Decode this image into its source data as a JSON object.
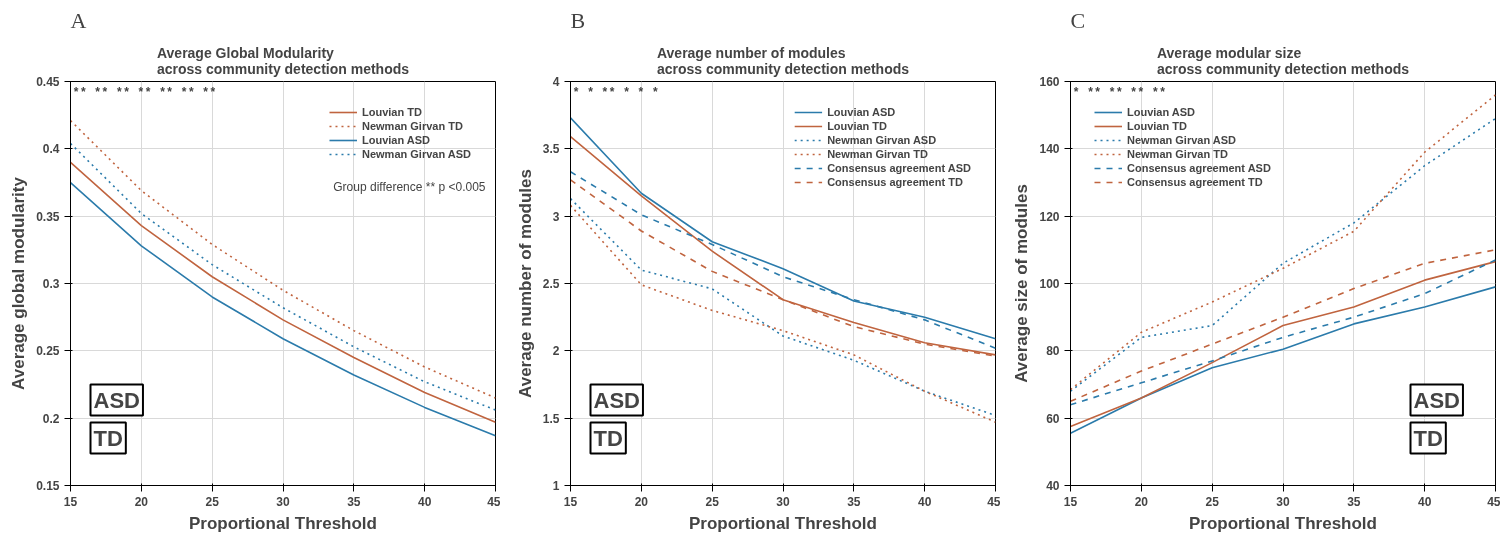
{
  "chart_data": [
    {
      "type": "line",
      "title": "Average Global Modularity\nacross community detection methods",
      "xlabel": "Proportional Threshold",
      "ylabel": "Average global modularity",
      "x": [
        15,
        20,
        25,
        30,
        35,
        40,
        45
      ],
      "xlim": [
        15,
        45
      ],
      "xticks": [
        15,
        20,
        25,
        30,
        35,
        40,
        45
      ],
      "ylim": [
        0.15,
        0.45
      ],
      "yticks": [
        0.15,
        0.2,
        0.25,
        0.3,
        0.35,
        0.4,
        0.45
      ],
      "grid": true,
      "legend": "top right",
      "series": [
        {
          "name": "Louvian TD",
          "color": "#c0643f",
          "line_style": "solid",
          "values": [
            0.39,
            0.343,
            0.305,
            0.273,
            0.245,
            0.219,
            0.197
          ]
        },
        {
          "name": "Newman Girvan TD",
          "color": "#c0643f",
          "line_style": "dotted",
          "values": [
            0.421,
            0.369,
            0.329,
            0.295,
            0.265,
            0.238,
            0.215
          ]
        },
        {
          "name": "Louvian ASD",
          "color": "#2b7bab",
          "line_style": "solid",
          "values": [
            0.375,
            0.328,
            0.29,
            0.259,
            0.232,
            0.208,
            0.187
          ]
        },
        {
          "name": "Newman Girvan ASD",
          "color": "#2b7bab",
          "line_style": "dotted",
          "values": [
            0.404,
            0.352,
            0.314,
            0.282,
            0.253,
            0.227,
            0.206
          ]
        }
      ],
      "annotations": [
        "A",
        "ASD",
        "TD",
        "**        **        **        **        **        **        **",
        "Group difference ** p <0.005"
      ]
    },
    {
      "type": "line",
      "title": "Average number of modules\nacross community detection methods",
      "xlabel": "Proportional Threshold",
      "ylabel": "Average number of modules",
      "x": [
        15,
        20,
        25,
        30,
        35,
        40,
        45
      ],
      "xlim": [
        15,
        45
      ],
      "xticks": [
        15,
        20,
        25,
        30,
        35,
        40,
        45
      ],
      "ylim": [
        1,
        4
      ],
      "yticks": [
        1,
        1.5,
        2,
        2.5,
        3,
        3.5,
        4
      ],
      "grid": true,
      "legend": "top right",
      "series": [
        {
          "name": "Louvian ASD",
          "color": "#2b7bab",
          "line_style": "solid",
          "values": [
            3.73,
            3.17,
            2.81,
            2.61,
            2.37,
            2.25,
            2.09
          ]
        },
        {
          "name": "Louvian TD",
          "color": "#c0643f",
          "line_style": "solid",
          "values": [
            3.59,
            3.15,
            2.74,
            2.38,
            2.21,
            2.06,
            1.97
          ]
        },
        {
          "name": "Newman Girvan ASD",
          "color": "#2b7bab",
          "line_style": "dotted",
          "values": [
            3.13,
            2.6,
            2.46,
            2.11,
            1.93,
            1.7,
            1.52
          ]
        },
        {
          "name": "Newman Girvan TD",
          "color": "#c0643f",
          "line_style": "dotted",
          "values": [
            3.08,
            2.49,
            2.3,
            2.15,
            1.97,
            1.7,
            1.47
          ]
        },
        {
          "name": "Consensus agreement ASD",
          "color": "#2b7bab",
          "line_style": "dashed",
          "values": [
            3.33,
            3.01,
            2.79,
            2.55,
            2.38,
            2.23,
            2.02
          ]
        },
        {
          "name": "Consensus agreement TD",
          "color": "#c0643f",
          "line_style": "dashed",
          "values": [
            3.27,
            2.89,
            2.59,
            2.38,
            2.18,
            2.05,
            1.96
          ]
        }
      ],
      "annotations": [
        "B",
        "ASD",
        "TD",
        "*                  *        **        *         *         *"
      ]
    },
    {
      "type": "line",
      "title": "Average modular size\nacross community detection methods",
      "xlabel": "Proportional Threshold",
      "ylabel": "Average size of modules",
      "x": [
        15,
        20,
        25,
        30,
        35,
        40,
        45
      ],
      "xlim": [
        15,
        45
      ],
      "xticks": [
        15,
        20,
        25,
        30,
        35,
        40,
        45
      ],
      "ylim": [
        40,
        160
      ],
      "yticks": [
        40,
        60,
        80,
        100,
        120,
        140,
        160
      ],
      "grid": true,
      "legend": "top left",
      "series": [
        {
          "name": "Louvian ASD",
          "color": "#2b7bab",
          "line_style": "solid",
          "values": [
            55.5,
            66,
            75,
            80.5,
            88,
            93,
            99
          ]
        },
        {
          "name": "Louvian TD",
          "color": "#c0643f",
          "line_style": "solid",
          "values": [
            57.5,
            66,
            76.5,
            87.5,
            93,
            101,
            106.5
          ]
        },
        {
          "name": "Newman Girvan ASD",
          "color": "#2b7bab",
          "line_style": "dotted",
          "values": [
            68,
            84,
            87.5,
            106,
            118,
            135,
            149
          ]
        },
        {
          "name": "Newman Girvan TD",
          "color": "#c0643f",
          "line_style": "dotted",
          "values": [
            68.5,
            85.5,
            94.5,
            104.5,
            115.5,
            139,
            156
          ]
        },
        {
          "name": "Consensus agreement ASD",
          "color": "#2b7bab",
          "line_style": "dashed",
          "values": [
            64,
            70.5,
            77,
            84,
            90,
            97,
            107
          ]
        },
        {
          "name": "Consensus agreement TD",
          "color": "#c0643f",
          "line_style": "dashed",
          "values": [
            65,
            74,
            82,
            90,
            98.5,
            106,
            110
          ]
        }
      ],
      "annotations": [
        "C",
        "ASD",
        "TD",
        "                    *        **        **        **       **"
      ]
    }
  ]
}
